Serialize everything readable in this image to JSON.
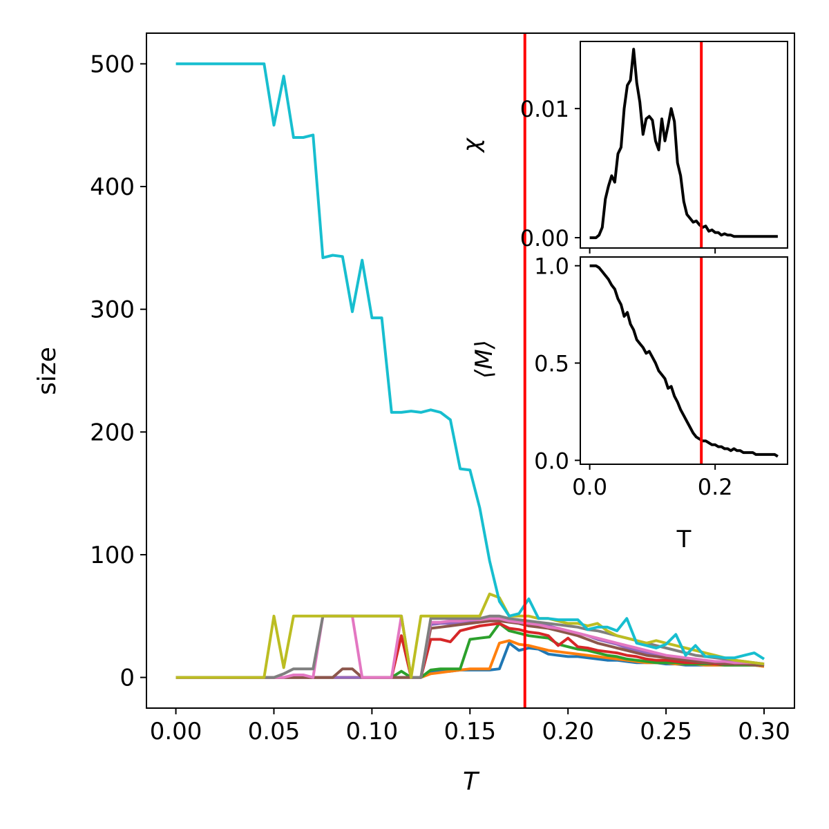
{
  "chart_data": [
    {
      "type": "line",
      "xlabel": "T",
      "ylabel": "size",
      "xlim": [
        -0.015,
        0.3155
      ],
      "ylim": [
        -25,
        525
      ],
      "xticks": [
        "0.00",
        "0.05",
        "0.10",
        "0.15",
        "0.20",
        "0.25",
        "0.30"
      ],
      "xtick_values": [
        0,
        0.05,
        0.1,
        0.15,
        0.2,
        0.25,
        0.3
      ],
      "yticks": [
        "0",
        "100",
        "200",
        "300",
        "400",
        "500"
      ],
      "ytick_values": [
        0,
        100,
        200,
        300,
        400,
        500
      ],
      "vline": {
        "x": 0.178,
        "color": "#ff0000"
      },
      "x": [
        0.0,
        0.005,
        0.01,
        0.015,
        0.02,
        0.025,
        0.03,
        0.035,
        0.04,
        0.045,
        0.05,
        0.055,
        0.06,
        0.065,
        0.07,
        0.075,
        0.08,
        0.085,
        0.09,
        0.095,
        0.1,
        0.105,
        0.11,
        0.115,
        0.12,
        0.125,
        0.13,
        0.135,
        0.14,
        0.145,
        0.15,
        0.155,
        0.16,
        0.165,
        0.17,
        0.175,
        0.18,
        0.185,
        0.19,
        0.195,
        0.2,
        0.205,
        0.21,
        0.215,
        0.22,
        0.225,
        0.23,
        0.235,
        0.24,
        0.245,
        0.25,
        0.255,
        0.26,
        0.265,
        0.27,
        0.275,
        0.28,
        0.285,
        0.29,
        0.295,
        0.3
      ],
      "series": [
        {
          "color": "#1f77b4",
          "values": [
            0,
            0,
            0,
            0,
            0,
            0,
            0,
            0,
            0,
            0,
            0,
            0,
            0,
            0,
            0,
            0,
            0,
            0,
            0,
            0,
            0,
            0,
            0,
            0,
            0,
            0,
            4,
            5,
            5,
            6,
            6,
            6,
            6,
            7,
            28,
            22,
            24,
            23,
            19,
            18,
            17,
            17,
            16,
            15,
            14,
            14,
            13,
            12,
            12,
            12,
            11,
            11,
            10,
            10,
            10,
            10,
            10,
            10,
            10,
            10,
            9
          ]
        },
        {
          "color": "#ff7f0e",
          "values": [
            0,
            0,
            0,
            0,
            0,
            0,
            0,
            0,
            0,
            0,
            0,
            0,
            0,
            0,
            0,
            0,
            0,
            0,
            0,
            0,
            0,
            0,
            0,
            0,
            0,
            0,
            3,
            4,
            5,
            6,
            7,
            7,
            7,
            28,
            30,
            27,
            26,
            24,
            22,
            21,
            20,
            19,
            18,
            17,
            16,
            15,
            14,
            13,
            12,
            12,
            12,
            11,
            11,
            11,
            10,
            10,
            10,
            10,
            10,
            10,
            9
          ]
        },
        {
          "color": "#2ca02c",
          "values": [
            0,
            0,
            0,
            0,
            0,
            0,
            0,
            0,
            0,
            0,
            0,
            0,
            0,
            0,
            0,
            0,
            0,
            0,
            0,
            0,
            0,
            0,
            0,
            5,
            0,
            0,
            6,
            7,
            7,
            7,
            31,
            32,
            33,
            44,
            38,
            36,
            34,
            33,
            32,
            27,
            25,
            23,
            22,
            20,
            18,
            17,
            15,
            14,
            13,
            12,
            12,
            12,
            11,
            11,
            11,
            11,
            10,
            10,
            10,
            10,
            10
          ]
        },
        {
          "color": "#d62728",
          "values": [
            0,
            0,
            0,
            0,
            0,
            0,
            0,
            0,
            0,
            0,
            0,
            0,
            0,
            0,
            0,
            0,
            0,
            0,
            0,
            0,
            0,
            0,
            0,
            34,
            0,
            0,
            31,
            31,
            29,
            38,
            40,
            42,
            43,
            44,
            40,
            39,
            37,
            36,
            34,
            26,
            32,
            25,
            24,
            22,
            21,
            20,
            18,
            17,
            15,
            14,
            14,
            13,
            12,
            12,
            12,
            11,
            11,
            11,
            11,
            11,
            10
          ]
        },
        {
          "color": "#9467bd",
          "values": [
            0,
            0,
            0,
            0,
            0,
            0,
            0,
            0,
            0,
            0,
            0,
            0,
            0,
            0,
            0,
            0,
            0,
            0,
            0,
            0,
            0,
            0,
            0,
            0,
            0,
            0,
            43,
            44,
            44,
            45,
            46,
            46,
            47,
            47,
            46,
            45,
            44,
            43,
            42,
            40,
            38,
            36,
            34,
            31,
            29,
            27,
            24,
            22,
            20,
            18,
            17,
            16,
            15,
            14,
            13,
            12,
            12,
            11,
            11,
            11,
            10
          ]
        },
        {
          "color": "#8c564b",
          "values": [
            0,
            0,
            0,
            0,
            0,
            0,
            0,
            0,
            0,
            0,
            0,
            0,
            0,
            0,
            0,
            0,
            0,
            7,
            7,
            0,
            0,
            0,
            0,
            0,
            0,
            0,
            40,
            41,
            42,
            43,
            44,
            45,
            46,
            46,
            45,
            44,
            42,
            41,
            40,
            38,
            36,
            34,
            31,
            28,
            26,
            24,
            22,
            20,
            18,
            17,
            16,
            15,
            14,
            13,
            12,
            12,
            11,
            11,
            11,
            10,
            10
          ]
        },
        {
          "color": "#e377c2",
          "values": [
            0,
            0,
            0,
            0,
            0,
            0,
            0,
            0,
            0,
            0,
            0,
            0,
            2,
            2,
            0,
            50,
            50,
            50,
            50,
            0,
            0,
            0,
            0,
            50,
            0,
            0,
            45,
            45,
            46,
            46,
            47,
            47,
            48,
            48,
            46,
            45,
            44,
            43,
            41,
            40,
            38,
            36,
            34,
            32,
            30,
            28,
            26,
            24,
            22,
            20,
            18,
            17,
            16,
            15,
            14,
            13,
            13,
            12,
            12,
            12,
            11
          ]
        },
        {
          "color": "#7f7f7f",
          "values": [
            0,
            0,
            0,
            0,
            0,
            0,
            0,
            0,
            0,
            0,
            0,
            3,
            7,
            7,
            7,
            50,
            50,
            50,
            50,
            50,
            50,
            50,
            50,
            50,
            0,
            0,
            48,
            48,
            48,
            48,
            48,
            48,
            50,
            50,
            48,
            47,
            46,
            45,
            44,
            43,
            42,
            41,
            39,
            38,
            36,
            34,
            32,
            30,
            28,
            26,
            24,
            22,
            20,
            18,
            17,
            16,
            15,
            14,
            13,
            12,
            11
          ]
        },
        {
          "color": "#bcbd22",
          "values": [
            0,
            0,
            0,
            0,
            0,
            0,
            0,
            0,
            0,
            0,
            50,
            8,
            50,
            50,
            50,
            50,
            50,
            50,
            50,
            50,
            50,
            50,
            50,
            50,
            0,
            50,
            50,
            50,
            50,
            50,
            50,
            50,
            68,
            65,
            50,
            50,
            50,
            48,
            48,
            46,
            44,
            44,
            42,
            44,
            38,
            34,
            32,
            30,
            28,
            30,
            28,
            26,
            24,
            22,
            20,
            18,
            16,
            14,
            13,
            12,
            11
          ]
        },
        {
          "color": "#17becf",
          "values": [
            500,
            500,
            500,
            500,
            500,
            500,
            500,
            500,
            500,
            500,
            450,
            490,
            440,
            440,
            442,
            342,
            344,
            343,
            298,
            340,
            293,
            293,
            216,
            216,
            217,
            216,
            218,
            216,
            210,
            170,
            169,
            138,
            95,
            62,
            50,
            52,
            64,
            48,
            48,
            47,
            47,
            47,
            39,
            41,
            41,
            38,
            48,
            28,
            26,
            24,
            27,
            35,
            18,
            26,
            17,
            17,
            16,
            16,
            18,
            20,
            15
          ]
        }
      ]
    },
    {
      "type": "line",
      "xlabel": "",
      "ylabel": "χ",
      "xlim": [
        -0.015,
        0.3155
      ],
      "ylim": [
        -0.0008,
        0.0152
      ],
      "yticks": [
        "0.00",
        "0.01"
      ],
      "ytick_values": [
        0,
        0.01
      ],
      "vline": {
        "x": 0.178,
        "color": "#ff0000"
      },
      "x": [
        0.0,
        0.005,
        0.01,
        0.015,
        0.02,
        0.025,
        0.03,
        0.035,
        0.04,
        0.045,
        0.05,
        0.055,
        0.06,
        0.065,
        0.07,
        0.075,
        0.08,
        0.085,
        0.09,
        0.095,
        0.1,
        0.105,
        0.11,
        0.115,
        0.12,
        0.125,
        0.13,
        0.135,
        0.14,
        0.145,
        0.15,
        0.155,
        0.16,
        0.165,
        0.17,
        0.175,
        0.18,
        0.185,
        0.19,
        0.195,
        0.2,
        0.205,
        0.21,
        0.215,
        0.22,
        0.225,
        0.23,
        0.235,
        0.24,
        0.245,
        0.25,
        0.255,
        0.26,
        0.265,
        0.27,
        0.275,
        0.28,
        0.285,
        0.29,
        0.295,
        0.3
      ],
      "values": [
        0,
        0,
        0,
        0.0002,
        0.0008,
        0.003,
        0.004,
        0.0048,
        0.0043,
        0.0065,
        0.007,
        0.01,
        0.0118,
        0.0122,
        0.0146,
        0.012,
        0.0105,
        0.008,
        0.0092,
        0.0094,
        0.0091,
        0.0075,
        0.0068,
        0.0092,
        0.0075,
        0.0087,
        0.01,
        0.009,
        0.0058,
        0.0048,
        0.0028,
        0.0018,
        0.0015,
        0.0012,
        0.0013,
        0.001,
        0.0008,
        0.0009,
        0.0005,
        0.0006,
        0.0004,
        0.0004,
        0.0002,
        0.0003,
        0.0002,
        0.0002,
        0.0001,
        0.0001,
        0.0001,
        0.0001,
        0.0001,
        0.0001,
        0.0001,
        0.0001,
        0.0001,
        0.0001,
        0.0001,
        0.0001,
        0.0001,
        0.0001,
        0.0001
      ]
    },
    {
      "type": "line",
      "xlabel": "T",
      "ylabel": "⟨M⟩",
      "xlim": [
        -0.015,
        0.3155
      ],
      "ylim": [
        -0.02,
        1.045
      ],
      "xticks": [
        "0.0",
        "0.2"
      ],
      "xtick_values": [
        0,
        0.2
      ],
      "yticks": [
        "0.0",
        "0.5",
        "1.0"
      ],
      "ytick_values": [
        0,
        0.5,
        1.0
      ],
      "vline": {
        "x": 0.178,
        "color": "#ff0000"
      },
      "x": [
        0.0,
        0.005,
        0.01,
        0.015,
        0.02,
        0.025,
        0.03,
        0.035,
        0.04,
        0.045,
        0.05,
        0.055,
        0.06,
        0.065,
        0.07,
        0.075,
        0.08,
        0.085,
        0.09,
        0.095,
        0.1,
        0.105,
        0.11,
        0.115,
        0.12,
        0.125,
        0.13,
        0.135,
        0.14,
        0.145,
        0.15,
        0.155,
        0.16,
        0.165,
        0.17,
        0.175,
        0.18,
        0.185,
        0.19,
        0.195,
        0.2,
        0.205,
        0.21,
        0.215,
        0.22,
        0.225,
        0.23,
        0.235,
        0.24,
        0.245,
        0.25,
        0.255,
        0.26,
        0.265,
        0.27,
        0.275,
        0.28,
        0.285,
        0.29,
        0.295,
        0.3
      ],
      "values": [
        1.0,
        1.0,
        1.0,
        0.99,
        0.97,
        0.95,
        0.93,
        0.9,
        0.88,
        0.83,
        0.8,
        0.74,
        0.76,
        0.7,
        0.67,
        0.62,
        0.6,
        0.58,
        0.55,
        0.56,
        0.53,
        0.5,
        0.46,
        0.44,
        0.42,
        0.37,
        0.38,
        0.33,
        0.3,
        0.26,
        0.23,
        0.2,
        0.17,
        0.14,
        0.12,
        0.11,
        0.1,
        0.1,
        0.09,
        0.08,
        0.08,
        0.07,
        0.07,
        0.06,
        0.06,
        0.05,
        0.06,
        0.05,
        0.05,
        0.04,
        0.04,
        0.04,
        0.04,
        0.03,
        0.03,
        0.03,
        0.03,
        0.03,
        0.03,
        0.03,
        0.02
      ]
    }
  ]
}
